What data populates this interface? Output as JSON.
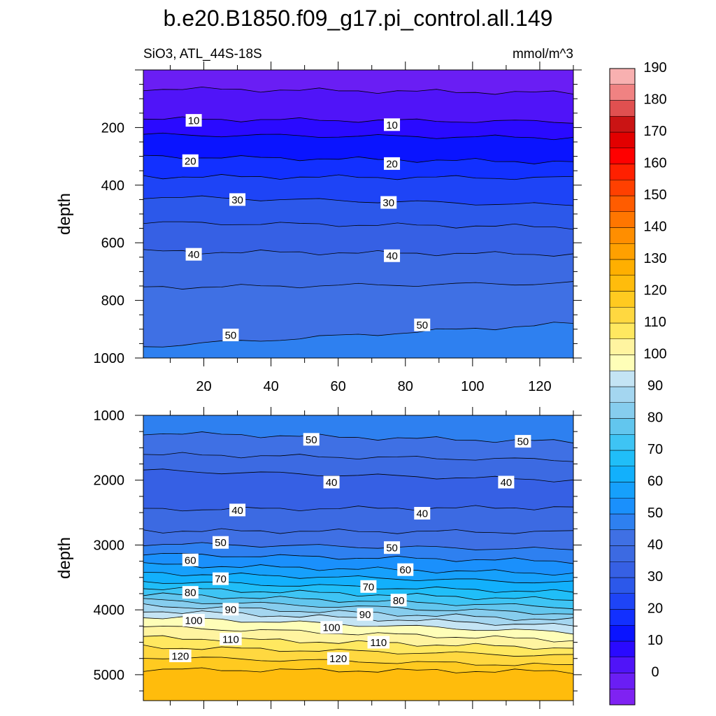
{
  "header": {
    "title": "b.e20.B1850.f09_g17.pi_control.all.149",
    "subtitle_left": "SiO3, ATL_44S-18S",
    "subtitle_right": "mmol/m^3"
  },
  "chart_data": [
    {
      "type": "contour",
      "panel": "upper",
      "variable": "SiO3",
      "units": "mmol/m^3",
      "xlim": [
        2,
        130
      ],
      "x_ticks": [
        20,
        40,
        60,
        80,
        100,
        120
      ],
      "ylim": [
        0,
        1000
      ],
      "y_ticks": [
        200,
        400,
        600,
        800,
        1000
      ],
      "ylabel": "depth",
      "y_reversed": true,
      "contour_interval": 5,
      "contours": [
        {
          "level": 5,
          "depth_left": 65,
          "depth_right": 80
        },
        {
          "level": 10,
          "depth_left": 170,
          "depth_right": 180
        },
        {
          "level": 15,
          "depth_left": 225,
          "depth_right": 235
        },
        {
          "level": 20,
          "depth_left": 300,
          "depth_right": 320
        },
        {
          "level": 25,
          "depth_left": 370,
          "depth_right": 375
        },
        {
          "level": 30,
          "depth_left": 440,
          "depth_right": 470
        },
        {
          "level": 35,
          "depth_left": 530,
          "depth_right": 545
        },
        {
          "level": 40,
          "depth_left": 630,
          "depth_right": 640
        },
        {
          "level": 45,
          "depth_left": 755,
          "depth_right": 740
        },
        {
          "level": 50,
          "depth_left": 960,
          "depth_right": 880
        }
      ],
      "contour_labels": [
        {
          "text": "10",
          "x": 17,
          "depth": 175
        },
        {
          "text": "10",
          "x": 76,
          "depth": 190
        },
        {
          "text": "20",
          "x": 16,
          "depth": 315
        },
        {
          "text": "20",
          "x": 76,
          "depth": 325
        },
        {
          "text": "30",
          "x": 30,
          "depth": 450
        },
        {
          "text": "30",
          "x": 75,
          "depth": 460
        },
        {
          "text": "40",
          "x": 17,
          "depth": 640
        },
        {
          "text": "40",
          "x": 76,
          "depth": 645
        },
        {
          "text": "50",
          "x": 28,
          "depth": 920
        },
        {
          "text": "50",
          "x": 85,
          "depth": 885
        }
      ]
    },
    {
      "type": "contour",
      "panel": "lower",
      "variable": "SiO3",
      "units": "mmol/m^3",
      "xlim": [
        2,
        130
      ],
      "x_ticks": [
        20,
        40,
        60,
        80,
        100,
        120
      ],
      "ylim": [
        1000,
        5400
      ],
      "y_ticks": [
        1000,
        2000,
        3000,
        4000,
        5000
      ],
      "ylabel": "depth",
      "y_reversed": true,
      "contour_interval": 5,
      "contours": [
        {
          "level": 50,
          "depth_left": 1270,
          "depth_right": 1410,
          "direction": "decreasing"
        },
        {
          "level": 45,
          "depth_left": 1600,
          "depth_right": 1690,
          "direction": "decreasing"
        },
        {
          "level": 40,
          "depth_left": 1850,
          "depth_right": 2000,
          "direction": "decreasing"
        },
        {
          "level": 40,
          "depth_left": 2450,
          "depth_right": 2420,
          "direction": "increasing"
        },
        {
          "level": 45,
          "depth_left": 2780,
          "depth_right": 2800,
          "direction": "increasing"
        },
        {
          "level": 50,
          "depth_left": 2980,
          "depth_right": 3070,
          "direction": "increasing"
        },
        {
          "level": 55,
          "depth_left": 3140,
          "depth_right": 3250,
          "direction": "increasing"
        },
        {
          "level": 60,
          "depth_left": 3300,
          "depth_right": 3440,
          "direction": "increasing"
        },
        {
          "level": 65,
          "depth_left": 3430,
          "depth_right": 3580,
          "direction": "increasing"
        },
        {
          "level": 70,
          "depth_left": 3560,
          "depth_right": 3730,
          "direction": "increasing"
        },
        {
          "level": 75,
          "depth_left": 3660,
          "depth_right": 3850,
          "direction": "increasing"
        },
        {
          "level": 80,
          "depth_left": 3760,
          "depth_right": 3960,
          "direction": "increasing"
        },
        {
          "level": 85,
          "depth_left": 3850,
          "depth_right": 4060,
          "direction": "increasing"
        },
        {
          "level": 90,
          "depth_left": 3930,
          "depth_right": 4160,
          "direction": "increasing"
        },
        {
          "level": 95,
          "depth_left": 4010,
          "depth_right": 4250,
          "direction": "increasing"
        },
        {
          "level": 100,
          "depth_left": 4110,
          "depth_right": 4350,
          "direction": "increasing"
        },
        {
          "level": 105,
          "depth_left": 4260,
          "depth_right": 4470,
          "direction": "increasing"
        },
        {
          "level": 110,
          "depth_left": 4420,
          "depth_right": 4590,
          "direction": "increasing"
        },
        {
          "level": 115,
          "depth_left": 4570,
          "depth_right": 4710,
          "direction": "increasing"
        },
        {
          "level": 120,
          "depth_left": 4730,
          "depth_right": 4860,
          "direction": "increasing"
        },
        {
          "level": 125,
          "depth_left": 4920,
          "depth_right": 4950,
          "direction": "increasing"
        }
      ],
      "contour_labels": [
        {
          "text": "50",
          "x": 52,
          "depth": 1370
        },
        {
          "text": "50",
          "x": 115,
          "depth": 1400
        },
        {
          "text": "40",
          "x": 58,
          "depth": 2030
        },
        {
          "text": "40",
          "x": 110,
          "depth": 2030
        },
        {
          "text": "40",
          "x": 30,
          "depth": 2460
        },
        {
          "text": "40",
          "x": 85,
          "depth": 2510
        },
        {
          "text": "50",
          "x": 25,
          "depth": 2960
        },
        {
          "text": "50",
          "x": 76,
          "depth": 3040
        },
        {
          "text": "60",
          "x": 16,
          "depth": 3230
        },
        {
          "text": "60",
          "x": 80,
          "depth": 3380
        },
        {
          "text": "70",
          "x": 25,
          "depth": 3520
        },
        {
          "text": "70",
          "x": 69,
          "depth": 3640
        },
        {
          "text": "80",
          "x": 16,
          "depth": 3730
        },
        {
          "text": "80",
          "x": 78,
          "depth": 3850
        },
        {
          "text": "90",
          "x": 28,
          "depth": 3990
        },
        {
          "text": "90",
          "x": 68,
          "depth": 4070
        },
        {
          "text": "100",
          "x": 17,
          "depth": 4160
        },
        {
          "text": "100",
          "x": 58,
          "depth": 4270
        },
        {
          "text": "110",
          "x": 28,
          "depth": 4450
        },
        {
          "text": "110",
          "x": 72,
          "depth": 4500
        },
        {
          "text": "120",
          "x": 13,
          "depth": 4710
        },
        {
          "text": "120",
          "x": 60,
          "depth": 4750
        }
      ]
    }
  ],
  "colorbar": {
    "labels": [
      "0",
      "10",
      "20",
      "30",
      "40",
      "50",
      "60",
      "70",
      "80",
      "90",
      "100",
      "110",
      "120",
      "130",
      "140",
      "150",
      "160",
      "170",
      "180",
      "190"
    ],
    "levels_min": -5,
    "levels_max": 195,
    "step": 5,
    "colors": [
      "#7f22f2",
      "#6a1ef4",
      "#5014f8",
      "#2a0aff",
      "#0a14ff",
      "#1230ff",
      "#1e44f6",
      "#2c58ea",
      "#3660e4",
      "#3c6ae2",
      "#3f70e4",
      "#2e80f0",
      "#1a90fc",
      "#16a0fc",
      "#12b0fc",
      "#20bef8",
      "#3ec4f4",
      "#62c6ee",
      "#86cdee",
      "#a4d6f0",
      "#c4e4f4",
      "#fefeb8",
      "#fff4a0",
      "#ffe860",
      "#ffd840",
      "#ffca20",
      "#ffbc0c",
      "#ffaf00",
      "#ffa000",
      "#ff8e00",
      "#ff7600",
      "#ff5c00",
      "#ff4000",
      "#ff2000",
      "#ff0000",
      "#e20000",
      "#ca1414",
      "#e05050",
      "#f08282",
      "#f8b0b0"
    ]
  }
}
